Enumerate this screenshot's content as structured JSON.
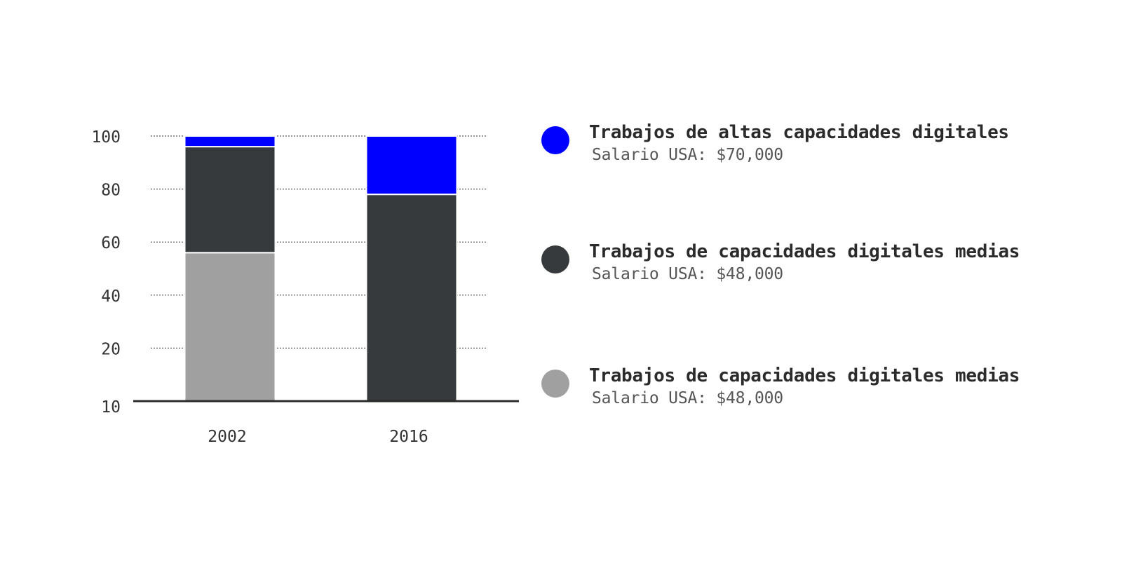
{
  "chart_data": {
    "type": "bar",
    "stacked": true,
    "categories": [
      "2002",
      "2016"
    ],
    "series": [
      {
        "name": "Trabajos de capacidades digitales medias",
        "subtitle": "Salario USA: $48,000",
        "color": "#a0a0a0",
        "values": [
          56,
          0
        ]
      },
      {
        "name": "Trabajos de capacidades digitales medias",
        "subtitle": "Salario USA: $48,000",
        "color": "#373a3c",
        "values": [
          40,
          78
        ]
      },
      {
        "name": "Trabajos de altas capacidades digitales",
        "subtitle": "Salario USA: $70,000",
        "color": "#0000ff",
        "values": [
          4,
          22
        ]
      }
    ],
    "yticks": [
      "10",
      "20",
      "40",
      "60",
      "80",
      "100"
    ],
    "ylim": [
      0,
      100
    ],
    "grid": true,
    "legend_position": "right"
  },
  "legend": [
    {
      "title": "Trabajos de altas capacidades digitales",
      "subtitle": "Salario USA: $70,000",
      "color": "#0000ff"
    },
    {
      "title": "Trabajos de capacidades digitales medias",
      "subtitle": "Salario USA: $48,000",
      "color": "#373a3c"
    },
    {
      "title": "Trabajos de capacidades digitales medias",
      "subtitle": "Salario USA: $48,000",
      "color": "#a0a0a0"
    }
  ]
}
